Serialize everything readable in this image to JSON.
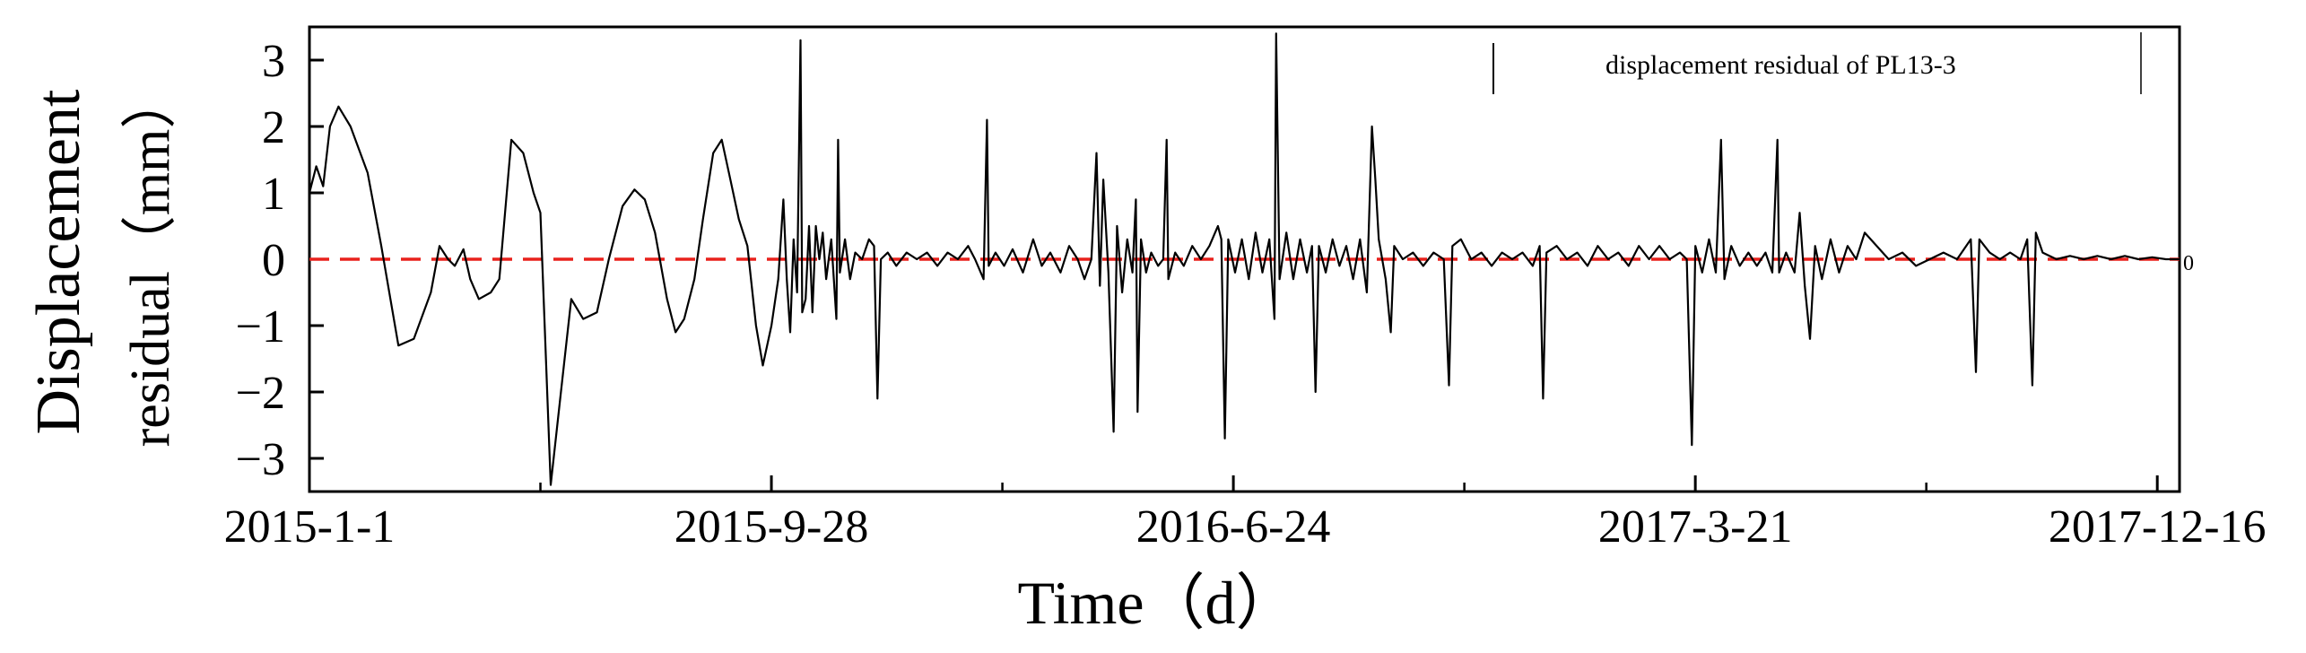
{
  "chart_data": {
    "type": "line",
    "title": "",
    "xlabel": "Time（d）",
    "ylabel_line1": "Displacement",
    "ylabel_line2": "residual（mm）",
    "x_start_date": "2015-01-01",
    "x_end_date": "2017-12-29",
    "xticks": [
      {
        "date": "2015-01-01",
        "label": "2015-1-1"
      },
      {
        "date": "2015-09-28",
        "label": "2015-9-28"
      },
      {
        "date": "2016-06-24",
        "label": "2016-6-24"
      },
      {
        "date": "2017-03-21",
        "label": "2017-3-21"
      },
      {
        "date": "2017-12-16",
        "label": "2017-12-16"
      }
    ],
    "ylim": [
      -3.5,
      3.5
    ],
    "yticks": [
      -3,
      -2,
      -1,
      0,
      1,
      2,
      3
    ],
    "zero_label": "0",
    "legend_position": "top-right",
    "grid": false,
    "reference_line": {
      "y": 0,
      "color": "#e8211c",
      "style": "dashed"
    },
    "series": [
      {
        "name": "displacement residual of PL13-3",
        "color": "#000000",
        "points": [
          [
            "2015-01-01",
            1.0
          ],
          [
            "2015-01-05",
            1.4
          ],
          [
            "2015-01-09",
            1.1
          ],
          [
            "2015-01-13",
            2.0
          ],
          [
            "2015-01-18",
            2.3
          ],
          [
            "2015-01-25",
            2.0
          ],
          [
            "2015-02-04",
            1.3
          ],
          [
            "2015-02-12",
            0.2
          ],
          [
            "2015-02-22",
            -1.3
          ],
          [
            "2015-03-03",
            -1.2
          ],
          [
            "2015-03-13",
            -0.5
          ],
          [
            "2015-03-18",
            0.2
          ],
          [
            "2015-03-23",
            0.0
          ],
          [
            "2015-03-27",
            -0.1
          ],
          [
            "2015-04-01",
            0.15
          ],
          [
            "2015-04-05",
            -0.3
          ],
          [
            "2015-04-10",
            -0.6
          ],
          [
            "2015-04-17",
            -0.5
          ],
          [
            "2015-04-22",
            -0.3
          ],
          [
            "2015-04-29",
            1.8
          ],
          [
            "2015-05-06",
            1.6
          ],
          [
            "2015-05-12",
            1.0
          ],
          [
            "2015-05-16",
            0.7
          ],
          [
            "2015-05-22",
            -3.4
          ],
          [
            "2015-05-28",
            -2.0
          ],
          [
            "2015-06-03",
            -0.6
          ],
          [
            "2015-06-10",
            -0.9
          ],
          [
            "2015-06-18",
            -0.8
          ],
          [
            "2015-06-25",
            0.0
          ],
          [
            "2015-07-03",
            0.8
          ],
          [
            "2015-07-10",
            1.05
          ],
          [
            "2015-07-16",
            0.9
          ],
          [
            "2015-07-22",
            0.4
          ],
          [
            "2015-07-29",
            -0.6
          ],
          [
            "2015-08-03",
            -1.1
          ],
          [
            "2015-08-08",
            -0.9
          ],
          [
            "2015-08-14",
            -0.3
          ],
          [
            "2015-08-19",
            0.6
          ],
          [
            "2015-08-25",
            1.6
          ],
          [
            "2015-08-30",
            1.8
          ],
          [
            "2015-09-04",
            1.2
          ],
          [
            "2015-09-09",
            0.6
          ],
          [
            "2015-09-14",
            0.2
          ],
          [
            "2015-09-19",
            -1.0
          ],
          [
            "2015-09-23",
            -1.6
          ],
          [
            "2015-09-28",
            -1.0
          ],
          [
            "2015-10-02",
            -0.3
          ],
          [
            "2015-10-05",
            0.9
          ],
          [
            "2015-10-07",
            -0.3
          ],
          [
            "2015-10-09",
            -1.1
          ],
          [
            "2015-10-11",
            0.3
          ],
          [
            "2015-10-13",
            -0.5
          ],
          [
            "2015-10-15",
            3.3
          ],
          [
            "2015-10-16",
            -0.8
          ],
          [
            "2015-10-18",
            -0.6
          ],
          [
            "2015-10-20",
            0.5
          ],
          [
            "2015-10-22",
            -0.8
          ],
          [
            "2015-10-24",
            0.5
          ],
          [
            "2015-10-26",
            0.0
          ],
          [
            "2015-10-28",
            0.4
          ],
          [
            "2015-10-30",
            -0.3
          ],
          [
            "2015-11-02",
            0.3
          ],
          [
            "2015-11-05",
            -0.9
          ],
          [
            "2015-11-06",
            1.8
          ],
          [
            "2015-11-07",
            -0.2
          ],
          [
            "2015-11-10",
            0.3
          ],
          [
            "2015-11-13",
            -0.3
          ],
          [
            "2015-11-16",
            0.1
          ],
          [
            "2015-11-20",
            0.0
          ],
          [
            "2015-11-24",
            0.3
          ],
          [
            "2015-11-27",
            0.2
          ],
          [
            "2015-11-29",
            -2.1
          ],
          [
            "2015-12-01",
            0.0
          ],
          [
            "2015-12-05",
            0.1
          ],
          [
            "2015-12-10",
            -0.1
          ],
          [
            "2015-12-16",
            0.1
          ],
          [
            "2015-12-22",
            0.0
          ],
          [
            "2015-12-28",
            0.1
          ],
          [
            "2016-01-03",
            -0.1
          ],
          [
            "2016-01-09",
            0.1
          ],
          [
            "2016-01-15",
            0.0
          ],
          [
            "2016-01-21",
            0.2
          ],
          [
            "2016-01-25",
            0.0
          ],
          [
            "2016-01-30",
            -0.3
          ],
          [
            "2016-02-01",
            2.1
          ],
          [
            "2016-02-02",
            -0.1
          ],
          [
            "2016-02-06",
            0.1
          ],
          [
            "2016-02-11",
            -0.1
          ],
          [
            "2016-02-16",
            0.15
          ],
          [
            "2016-02-22",
            -0.2
          ],
          [
            "2016-02-28",
            0.3
          ],
          [
            "2016-03-04",
            -0.1
          ],
          [
            "2016-03-09",
            0.1
          ],
          [
            "2016-03-15",
            -0.2
          ],
          [
            "2016-03-20",
            0.2
          ],
          [
            "2016-03-25",
            0.0
          ],
          [
            "2016-03-29",
            -0.3
          ],
          [
            "2016-04-02",
            0.0
          ],
          [
            "2016-04-05",
            1.6
          ],
          [
            "2016-04-07",
            -0.4
          ],
          [
            "2016-04-09",
            1.2
          ],
          [
            "2016-04-12",
            -0.2
          ],
          [
            "2016-04-15",
            -2.6
          ],
          [
            "2016-04-17",
            0.5
          ],
          [
            "2016-04-20",
            -0.5
          ],
          [
            "2016-04-23",
            0.3
          ],
          [
            "2016-04-26",
            -0.2
          ],
          [
            "2016-04-28",
            0.9
          ],
          [
            "2016-04-29",
            -2.3
          ],
          [
            "2016-05-01",
            0.3
          ],
          [
            "2016-05-04",
            -0.2
          ],
          [
            "2016-05-07",
            0.1
          ],
          [
            "2016-05-11",
            -0.1
          ],
          [
            "2016-05-14",
            0.0
          ],
          [
            "2016-05-16",
            1.8
          ],
          [
            "2016-05-17",
            -0.3
          ],
          [
            "2016-05-21",
            0.1
          ],
          [
            "2016-05-26",
            -0.1
          ],
          [
            "2016-05-31",
            0.2
          ],
          [
            "2016-06-05",
            0.0
          ],
          [
            "2016-06-10",
            0.2
          ],
          [
            "2016-06-15",
            0.5
          ],
          [
            "2016-06-17",
            0.3
          ],
          [
            "2016-06-19",
            -2.7
          ],
          [
            "2016-06-21",
            0.3
          ],
          [
            "2016-06-25",
            -0.2
          ],
          [
            "2016-06-29",
            0.3
          ],
          [
            "2016-07-03",
            -0.3
          ],
          [
            "2016-07-07",
            0.4
          ],
          [
            "2016-07-11",
            -0.2
          ],
          [
            "2016-07-15",
            0.3
          ],
          [
            "2016-07-18",
            -0.9
          ],
          [
            "2016-07-19",
            3.4
          ],
          [
            "2016-07-21",
            -0.3
          ],
          [
            "2016-07-25",
            0.4
          ],
          [
            "2016-07-29",
            -0.3
          ],
          [
            "2016-08-02",
            0.3
          ],
          [
            "2016-08-06",
            -0.2
          ],
          [
            "2016-08-09",
            0.2
          ],
          [
            "2016-08-11",
            -2.0
          ],
          [
            "2016-08-13",
            0.2
          ],
          [
            "2016-08-17",
            -0.2
          ],
          [
            "2016-08-21",
            0.3
          ],
          [
            "2016-08-25",
            -0.1
          ],
          [
            "2016-08-29",
            0.2
          ],
          [
            "2016-09-02",
            -0.3
          ],
          [
            "2016-09-06",
            0.3
          ],
          [
            "2016-09-10",
            -0.5
          ],
          [
            "2016-09-13",
            2.0
          ],
          [
            "2016-09-15",
            1.2
          ],
          [
            "2016-09-17",
            0.3
          ],
          [
            "2016-09-21",
            -0.3
          ],
          [
            "2016-09-24",
            -1.1
          ],
          [
            "2016-09-26",
            0.2
          ],
          [
            "2016-10-01",
            0.0
          ],
          [
            "2016-10-07",
            0.1
          ],
          [
            "2016-10-13",
            -0.1
          ],
          [
            "2016-10-19",
            0.1
          ],
          [
            "2016-10-25",
            0.0
          ],
          [
            "2016-10-28",
            -1.9
          ],
          [
            "2016-10-30",
            0.2
          ],
          [
            "2016-11-04",
            0.3
          ],
          [
            "2016-11-10",
            0.0
          ],
          [
            "2016-11-16",
            0.1
          ],
          [
            "2016-11-22",
            -0.1
          ],
          [
            "2016-11-28",
            0.1
          ],
          [
            "2016-12-04",
            0.0
          ],
          [
            "2016-12-10",
            0.1
          ],
          [
            "2016-12-16",
            -0.1
          ],
          [
            "2016-12-20",
            0.2
          ],
          [
            "2016-12-22",
            -2.1
          ],
          [
            "2016-12-24",
            0.1
          ],
          [
            "2016-12-30",
            0.2
          ],
          [
            "2017-01-05",
            0.0
          ],
          [
            "2017-01-11",
            0.1
          ],
          [
            "2017-01-17",
            -0.1
          ],
          [
            "2017-01-23",
            0.2
          ],
          [
            "2017-01-29",
            0.0
          ],
          [
            "2017-02-04",
            0.1
          ],
          [
            "2017-02-10",
            -0.1
          ],
          [
            "2017-02-16",
            0.2
          ],
          [
            "2017-02-22",
            0.0
          ],
          [
            "2017-02-28",
            0.2
          ],
          [
            "2017-03-06",
            0.0
          ],
          [
            "2017-03-12",
            0.1
          ],
          [
            "2017-03-16",
            0.0
          ],
          [
            "2017-03-19",
            -2.8
          ],
          [
            "2017-03-21",
            0.2
          ],
          [
            "2017-03-25",
            -0.2
          ],
          [
            "2017-03-29",
            0.3
          ],
          [
            "2017-04-02",
            -0.2
          ],
          [
            "2017-04-05",
            1.8
          ],
          [
            "2017-04-07",
            -0.3
          ],
          [
            "2017-04-11",
            0.2
          ],
          [
            "2017-04-16",
            -0.1
          ],
          [
            "2017-04-21",
            0.1
          ],
          [
            "2017-04-26",
            -0.1
          ],
          [
            "2017-05-01",
            0.1
          ],
          [
            "2017-05-05",
            -0.2
          ],
          [
            "2017-05-08",
            1.8
          ],
          [
            "2017-05-09",
            -0.2
          ],
          [
            "2017-05-13",
            0.1
          ],
          [
            "2017-05-18",
            -0.2
          ],
          [
            "2017-05-21",
            0.7
          ],
          [
            "2017-05-24",
            -0.4
          ],
          [
            "2017-05-27",
            -1.2
          ],
          [
            "2017-05-30",
            0.2
          ],
          [
            "2017-06-03",
            -0.3
          ],
          [
            "2017-06-08",
            0.3
          ],
          [
            "2017-06-13",
            -0.2
          ],
          [
            "2017-06-18",
            0.2
          ],
          [
            "2017-06-23",
            0.0
          ],
          [
            "2017-06-28",
            0.4
          ],
          [
            "2017-07-05",
            0.2
          ],
          [
            "2017-07-12",
            0.0
          ],
          [
            "2017-07-20",
            0.1
          ],
          [
            "2017-07-28",
            -0.1
          ],
          [
            "2017-08-05",
            0.0
          ],
          [
            "2017-08-13",
            0.1
          ],
          [
            "2017-08-21",
            0.0
          ],
          [
            "2017-08-29",
            0.3
          ],
          [
            "2017-09-01",
            -1.7
          ],
          [
            "2017-09-03",
            0.3
          ],
          [
            "2017-09-09",
            0.1
          ],
          [
            "2017-09-15",
            0.0
          ],
          [
            "2017-09-21",
            0.1
          ],
          [
            "2017-09-27",
            0.0
          ],
          [
            "2017-10-01",
            0.3
          ],
          [
            "2017-10-04",
            -1.9
          ],
          [
            "2017-10-06",
            0.4
          ],
          [
            "2017-10-10",
            0.1
          ],
          [
            "2017-10-18",
            0.0
          ],
          [
            "2017-10-26",
            0.05
          ],
          [
            "2017-11-03",
            0.0
          ],
          [
            "2017-11-11",
            0.05
          ],
          [
            "2017-11-19",
            0.0
          ],
          [
            "2017-11-27",
            0.05
          ],
          [
            "2017-12-05",
            0.0
          ],
          [
            "2017-12-13",
            0.03
          ],
          [
            "2017-12-21",
            0.0
          ],
          [
            "2017-12-29",
            0.0
          ]
        ]
      }
    ]
  }
}
